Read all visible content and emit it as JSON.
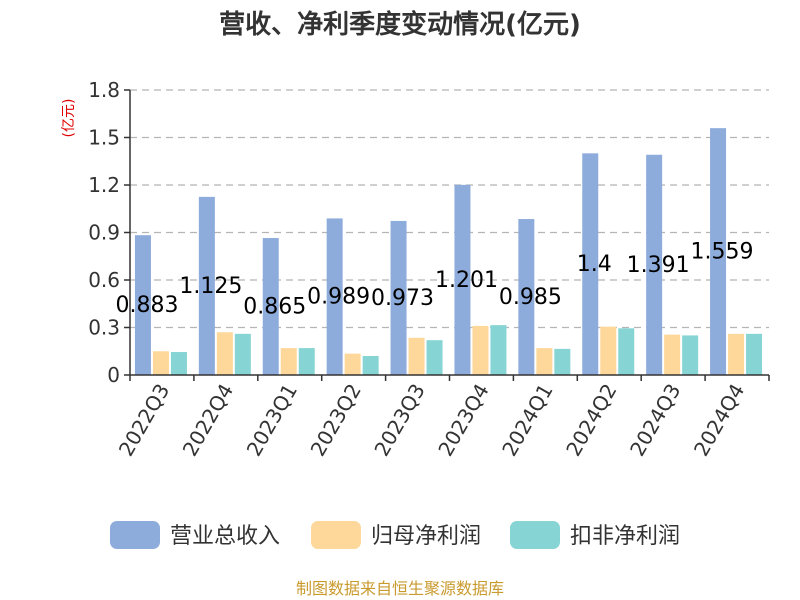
{
  "chart_data": {
    "type": "bar",
    "title": "营收、净利季度变动情况(亿元)",
    "ylabel": "(亿元)",
    "ylim": [
      0,
      1.8
    ],
    "yticks": [
      "0",
      "0.3",
      "0.6",
      "0.9",
      "1.2",
      "1.5",
      "1.8"
    ],
    "categories": [
      "2022Q3",
      "2022Q4",
      "2023Q1",
      "2023Q2",
      "2023Q3",
      "2023Q4",
      "2024Q1",
      "2024Q2",
      "2024Q3",
      "2024Q4"
    ],
    "series": [
      {
        "name": "营业总收入",
        "color": "#8eacdb",
        "values": [
          0.883,
          1.125,
          0.865,
          0.989,
          0.973,
          1.201,
          0.985,
          1.4,
          1.391,
          1.559
        ],
        "labels": [
          "0.883",
          "1.125",
          "0.865",
          "0.989",
          "0.973",
          "1.201",
          "0.985",
          "1.4",
          "1.391",
          "1.559"
        ]
      },
      {
        "name": "归母净利润",
        "color": "#fdd89a",
        "values": [
          0.15,
          0.27,
          0.17,
          0.135,
          0.235,
          0.31,
          0.17,
          0.305,
          0.255,
          0.26
        ]
      },
      {
        "name": "扣非净利润",
        "color": "#86d5d4",
        "values": [
          0.145,
          0.26,
          0.17,
          0.12,
          0.22,
          0.315,
          0.165,
          0.295,
          0.25,
          0.26
        ]
      }
    ],
    "grid": true,
    "legend_position": "bottom"
  },
  "footer": {
    "source": "制图数据来自恒生聚源数据库"
  }
}
